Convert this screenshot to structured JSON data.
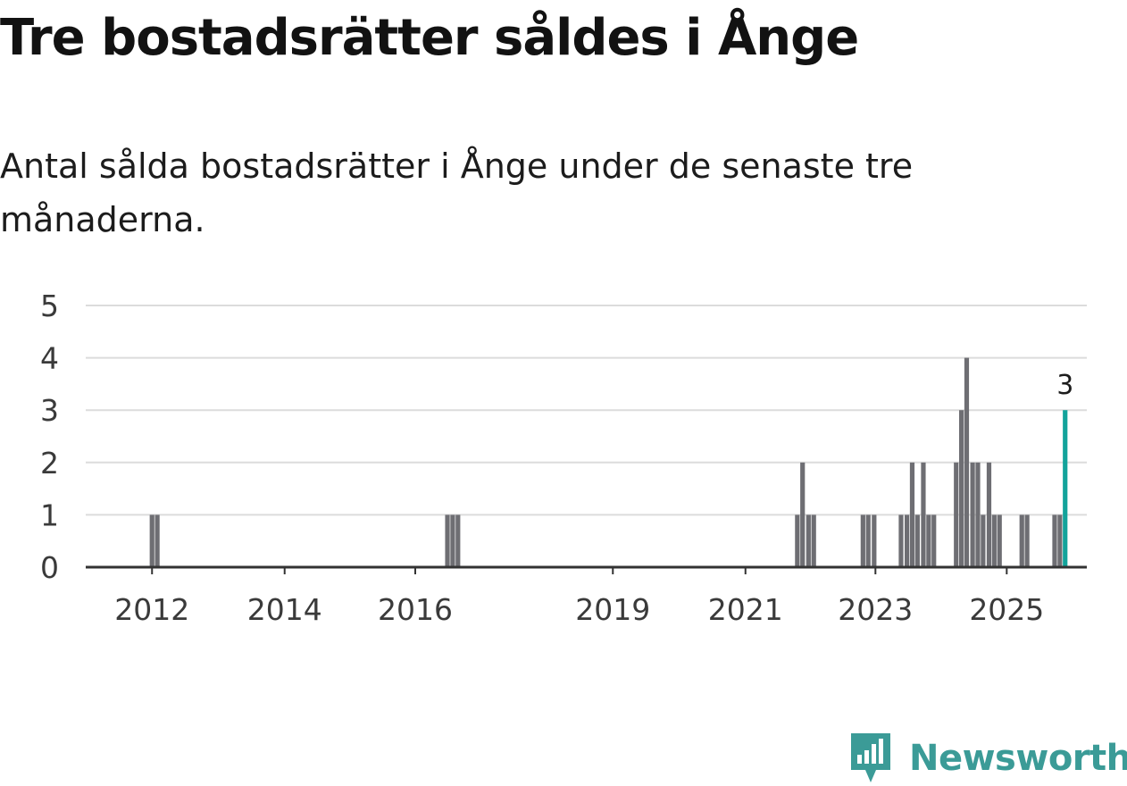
{
  "title": "Tre bostadsrätter såldes i Ånge",
  "subtitle": "Antal sålda bostadsrätter i Ånge under de senaste tre månaderna.",
  "brand": {
    "name": "Newsworthy",
    "icon": "newsworthy-logo-icon"
  },
  "colors": {
    "bar": "#6e6e73",
    "highlight": "#12a39b",
    "grid": "#dcdcdc",
    "axis": "#333333",
    "brand": "#3b9b97"
  },
  "chart_data": {
    "type": "bar",
    "title": "Tre bostadsrätter såldes i Ånge",
    "subtitle": "Antal sålda bostadsrätter i Ånge under de senaste tre månaderna.",
    "xlabel": "",
    "ylabel": "",
    "ylim": [
      0,
      5
    ],
    "yticks": [
      0,
      1,
      2,
      3,
      4,
      5
    ],
    "xlim": [
      2010.92,
      2026.17
    ],
    "xticks": [
      {
        "label": "2012",
        "value": 2011.93
      },
      {
        "label": "2014",
        "value": 2013.95
      },
      {
        "label": "2016",
        "value": 2015.94
      },
      {
        "label": "2019",
        "value": 2018.95
      },
      {
        "label": "2021",
        "value": 2020.97
      },
      {
        "label": "2023",
        "value": 2022.95
      },
      {
        "label": "2025",
        "value": 2024.95
      }
    ],
    "grid": true,
    "series": [
      {
        "name": "Antal sålda bostadsrätter",
        "points": [
          {
            "t": 2011.93,
            "v": 1
          },
          {
            "t": 2012.01,
            "v": 1
          },
          {
            "t": 2016.43,
            "v": 1
          },
          {
            "t": 2016.51,
            "v": 1
          },
          {
            "t": 2016.59,
            "v": 1
          },
          {
            "t": 2021.76,
            "v": 1
          },
          {
            "t": 2021.84,
            "v": 2
          },
          {
            "t": 2021.93,
            "v": 1
          },
          {
            "t": 2022.01,
            "v": 1
          },
          {
            "t": 2022.76,
            "v": 1
          },
          {
            "t": 2022.84,
            "v": 1
          },
          {
            "t": 2022.93,
            "v": 1
          },
          {
            "t": 2023.34,
            "v": 1
          },
          {
            "t": 2023.43,
            "v": 1
          },
          {
            "t": 2023.51,
            "v": 2
          },
          {
            "t": 2023.59,
            "v": 1
          },
          {
            "t": 2023.68,
            "v": 2
          },
          {
            "t": 2023.76,
            "v": 1
          },
          {
            "t": 2023.84,
            "v": 1
          },
          {
            "t": 2024.18,
            "v": 2
          },
          {
            "t": 2024.26,
            "v": 3
          },
          {
            "t": 2024.34,
            "v": 4
          },
          {
            "t": 2024.43,
            "v": 2
          },
          {
            "t": 2024.51,
            "v": 2
          },
          {
            "t": 2024.59,
            "v": 1
          },
          {
            "t": 2024.68,
            "v": 2
          },
          {
            "t": 2024.76,
            "v": 1
          },
          {
            "t": 2024.84,
            "v": 1
          },
          {
            "t": 2025.18,
            "v": 1
          },
          {
            "t": 2025.26,
            "v": 1
          },
          {
            "t": 2025.68,
            "v": 1
          },
          {
            "t": 2025.76,
            "v": 1
          },
          {
            "t": 2025.84,
            "v": 3,
            "highlight": true
          }
        ]
      }
    ],
    "annotations": [
      {
        "t": 2025.84,
        "v": 3,
        "text": "3"
      }
    ]
  }
}
